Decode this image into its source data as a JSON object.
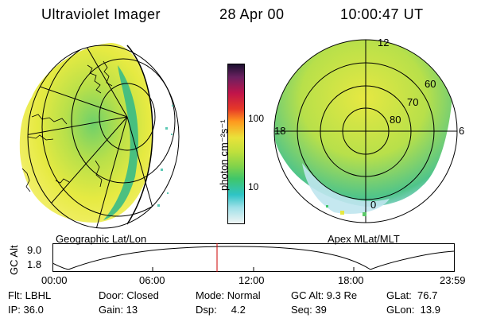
{
  "header": {
    "instrument": "Ultraviolet Imager",
    "date": "28 Apr 00",
    "time": "10:00:47 UT"
  },
  "panels": {
    "left_label": "Geographic Lat/Lon",
    "right_label": "Apex MLat/MLT"
  },
  "colorbar": {
    "unit_label": "photon cm⁻²s⁻¹",
    "ticks": [
      "100",
      "10"
    ]
  },
  "polar_plot": {
    "mlt_labels": {
      "top": "12",
      "right": "6",
      "bottom": "0",
      "left": "18"
    },
    "lat_labels": [
      "60",
      "70",
      "80"
    ]
  },
  "gc_alt_chart": {
    "ylabel": "GC Alt",
    "yticks": [
      "9.0",
      "1.8"
    ],
    "xticks": [
      "00:00",
      "06:00",
      "12:00",
      "18:00",
      "23:59"
    ]
  },
  "info": {
    "col1": [
      "Flt: LBHL",
      "IP: 36.0"
    ],
    "col2": [
      "Door: Closed",
      "Gain: 13"
    ],
    "col3": [
      "Mode: Normal",
      "Dsp:     4.2"
    ],
    "col4": [
      "GC Alt: 9.3 Re",
      "Seq: 39"
    ],
    "col5": [
      "GLat:  76.7",
      "GLon:  13.9"
    ]
  }
}
